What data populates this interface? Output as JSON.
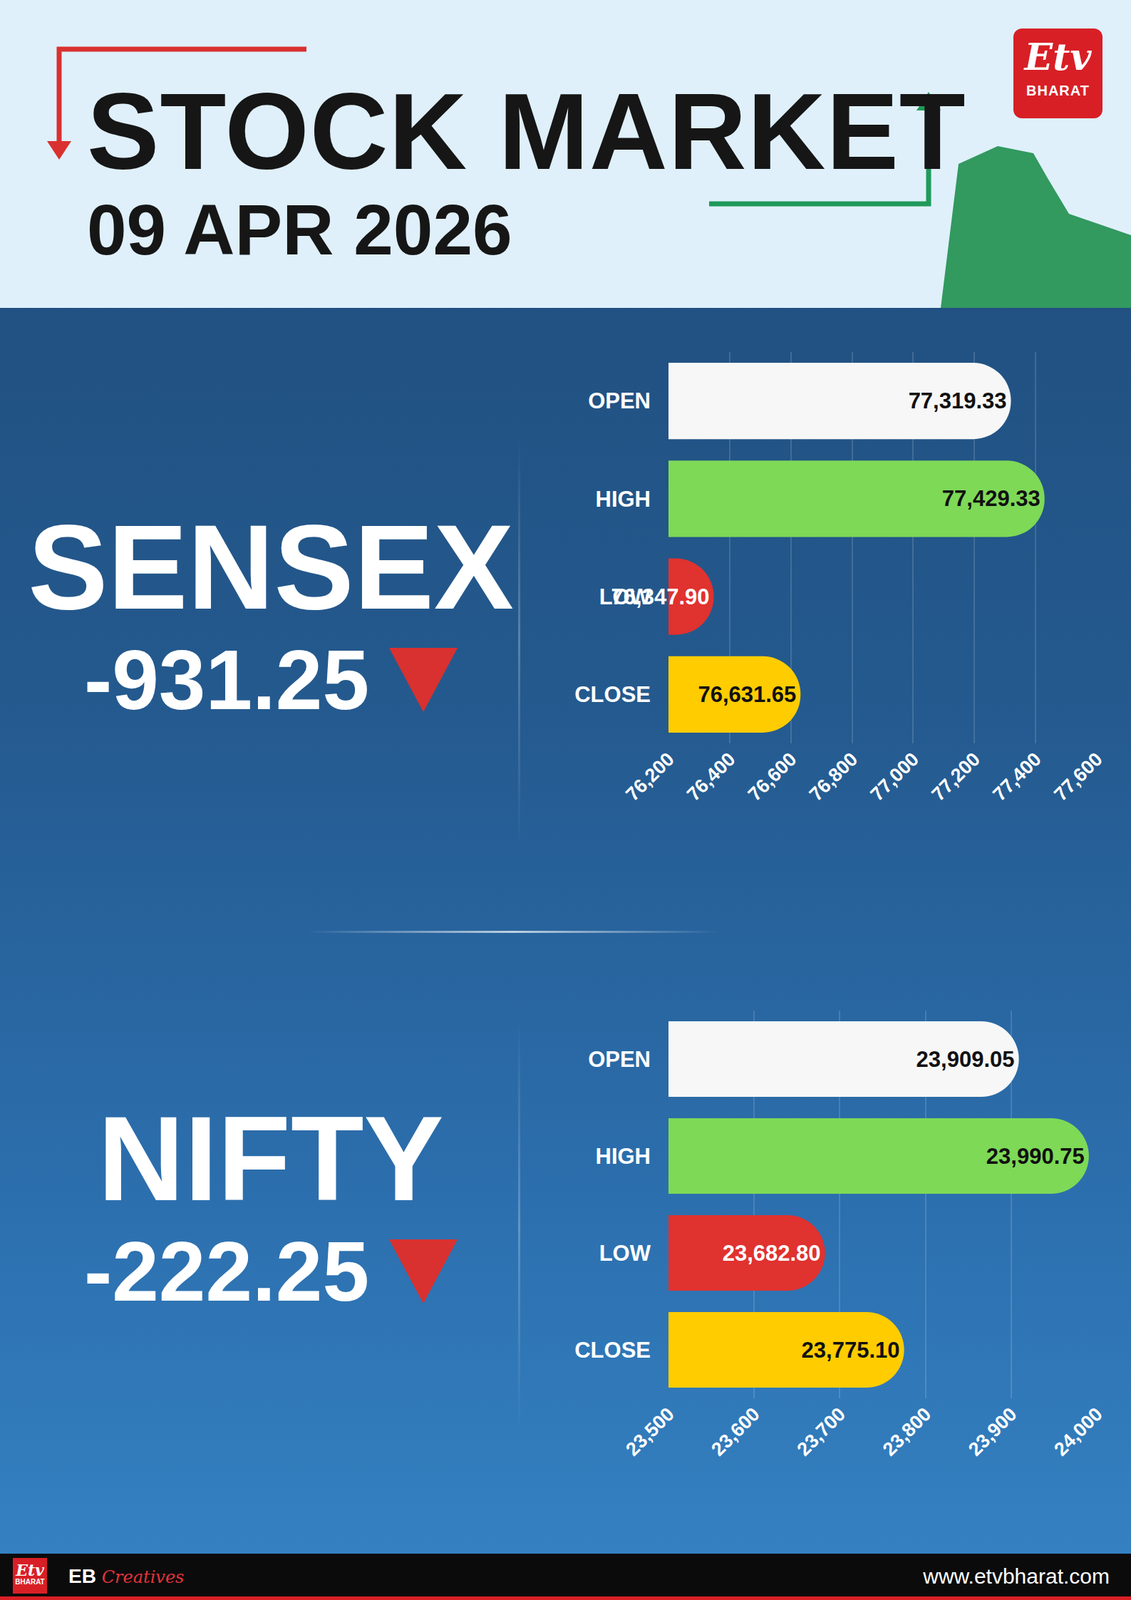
{
  "header": {
    "title": "STOCK MARKET",
    "date": "09 APR 2026",
    "logo": {
      "mark": "Etv",
      "name": "BHARAT"
    }
  },
  "chart_data": [
    {
      "type": "bar",
      "orientation": "horizontal",
      "title": "SENSEX",
      "change": -931.25,
      "categories": [
        "OPEN",
        "HIGH",
        "LOW",
        "CLOSE"
      ],
      "values": [
        77319.33,
        77429.33,
        76347.9,
        76631.65
      ],
      "value_labels": [
        "77,319.33",
        "77,429.33",
        "76,347.90",
        "76,631.65"
      ],
      "colors": [
        "#f7f7f7",
        "#7ed957",
        "#e0322f",
        "#ffcc00"
      ],
      "xlim": [
        76200,
        77600
      ],
      "xticks": [
        {
          "value": 76200,
          "label": "76,200"
        },
        {
          "value": 76400,
          "label": "76,400"
        },
        {
          "value": 76600,
          "label": "76,600"
        },
        {
          "value": 76800,
          "label": "76,800"
        },
        {
          "value": 77000,
          "label": "77,000"
        },
        {
          "value": 77200,
          "label": "77,200"
        },
        {
          "value": 77400,
          "label": "77,400"
        },
        {
          "value": 77600,
          "label": "77,600"
        }
      ],
      "data_labels": true,
      "grid": true
    },
    {
      "type": "bar",
      "orientation": "horizontal",
      "title": "NIFTY",
      "change": -222.25,
      "categories": [
        "OPEN",
        "HIGH",
        "LOW",
        "CLOSE"
      ],
      "values": [
        23909.05,
        23990.75,
        23682.8,
        23775.1
      ],
      "value_labels": [
        "23,909.05",
        "23,990.75",
        "23,682.80",
        "23,775.10"
      ],
      "colors": [
        "#f7f7f7",
        "#7ed957",
        "#e0322f",
        "#ffcc00"
      ],
      "xlim": [
        23500,
        24000
      ],
      "xticks": [
        {
          "value": 23500,
          "label": "23,500"
        },
        {
          "value": 23600,
          "label": "23,600"
        },
        {
          "value": 23700,
          "label": "23,700"
        },
        {
          "value": 23800,
          "label": "23,800"
        },
        {
          "value": 23900,
          "label": "23,900"
        },
        {
          "value": 24000,
          "label": "24,000"
        }
      ],
      "data_labels": true,
      "grid": true
    }
  ],
  "footer": {
    "brand": "EB",
    "brand_suffix": "Creatives",
    "website": "www.etvbharat.com"
  }
}
